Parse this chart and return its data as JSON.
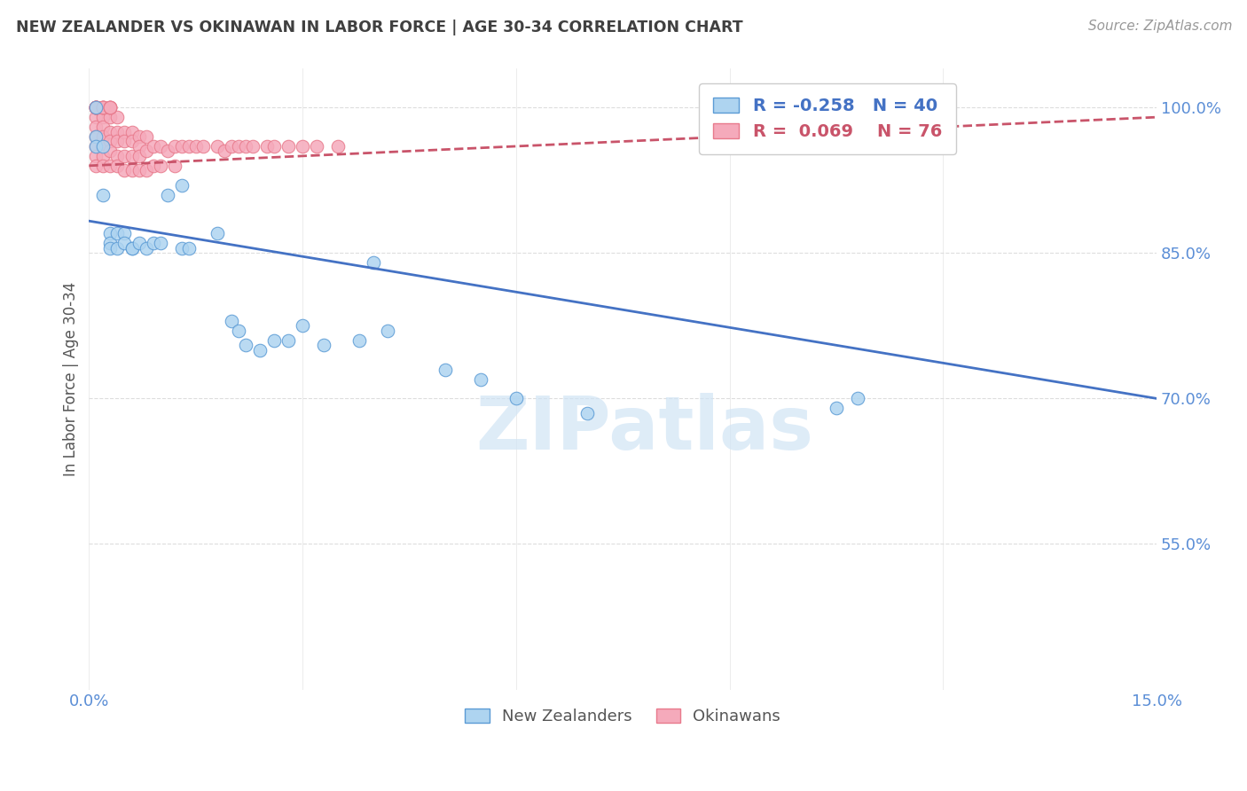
{
  "title": "NEW ZEALANDER VS OKINAWAN IN LABOR FORCE | AGE 30-34 CORRELATION CHART",
  "source": "Source: ZipAtlas.com",
  "ylabel": "In Labor Force | Age 30-34",
  "xlim": [
    0.0,
    0.15
  ],
  "ylim": [
    0.4,
    1.04
  ],
  "yticks": [
    0.55,
    0.7,
    0.85,
    1.0
  ],
  "ytick_labels": [
    "55.0%",
    "70.0%",
    "85.0%",
    "100.0%"
  ],
  "xticks": [
    0.0,
    0.03,
    0.06,
    0.09,
    0.12,
    0.15
  ],
  "xtick_labels": [
    "0.0%",
    "",
    "",
    "",
    "",
    "15.0%"
  ],
  "legend_R_nz": "-0.258",
  "legend_N_nz": "40",
  "legend_R_ok": "0.069",
  "legend_N_ok": "76",
  "nz_fill_color": "#AED4F0",
  "ok_fill_color": "#F5AABB",
  "nz_edge_color": "#5B9BD5",
  "ok_edge_color": "#E87A8C",
  "nz_line_color": "#4472C4",
  "ok_line_color": "#C9546A",
  "watermark_color": "#D0E4F5",
  "title_color": "#404040",
  "axis_label_color": "#5B8ED6",
  "grid_color": "#DDDDDD",
  "nz_scatter_x": [
    0.001,
    0.001,
    0.001,
    0.002,
    0.002,
    0.003,
    0.003,
    0.003,
    0.004,
    0.004,
    0.005,
    0.005,
    0.006,
    0.006,
    0.007,
    0.008,
    0.009,
    0.01,
    0.011,
    0.013,
    0.013,
    0.014,
    0.018,
    0.02,
    0.021,
    0.022,
    0.024,
    0.026,
    0.028,
    0.03,
    0.033,
    0.038,
    0.04,
    0.042,
    0.05,
    0.055,
    0.06,
    0.07,
    0.105,
    0.108
  ],
  "nz_scatter_y": [
    1.0,
    0.97,
    0.96,
    0.96,
    0.91,
    0.87,
    0.86,
    0.855,
    0.87,
    0.855,
    0.87,
    0.86,
    0.855,
    0.855,
    0.86,
    0.855,
    0.86,
    0.86,
    0.91,
    0.92,
    0.855,
    0.855,
    0.87,
    0.78,
    0.77,
    0.755,
    0.75,
    0.76,
    0.76,
    0.775,
    0.755,
    0.76,
    0.84,
    0.77,
    0.73,
    0.72,
    0.7,
    0.685,
    0.69,
    0.7
  ],
  "ok_scatter_x": [
    0.001,
    0.001,
    0.001,
    0.001,
    0.001,
    0.001,
    0.002,
    0.002,
    0.002,
    0.002,
    0.002,
    0.002,
    0.003,
    0.003,
    0.003,
    0.003,
    0.003,
    0.004,
    0.004,
    0.004,
    0.004,
    0.004,
    0.005,
    0.005,
    0.005,
    0.005,
    0.006,
    0.006,
    0.006,
    0.006,
    0.007,
    0.007,
    0.007,
    0.007,
    0.008,
    0.008,
    0.008,
    0.009,
    0.009,
    0.01,
    0.01,
    0.011,
    0.012,
    0.012,
    0.013,
    0.014,
    0.015,
    0.016,
    0.018,
    0.019,
    0.02,
    0.021,
    0.022,
    0.023,
    0.025,
    0.026,
    0.028,
    0.03,
    0.032,
    0.035,
    0.001,
    0.001,
    0.001,
    0.001,
    0.001,
    0.001,
    0.001,
    0.001,
    0.002,
    0.002,
    0.002,
    0.002,
    0.003,
    0.003,
    0.003,
    0.003
  ],
  "ok_scatter_y": [
    0.99,
    0.98,
    0.97,
    0.96,
    0.95,
    0.94,
    0.99,
    0.98,
    0.97,
    0.96,
    0.95,
    0.94,
    0.99,
    0.975,
    0.965,
    0.955,
    0.94,
    0.99,
    0.975,
    0.965,
    0.95,
    0.94,
    0.975,
    0.965,
    0.95,
    0.935,
    0.975,
    0.965,
    0.95,
    0.935,
    0.97,
    0.96,
    0.95,
    0.935,
    0.97,
    0.955,
    0.935,
    0.96,
    0.94,
    0.96,
    0.94,
    0.955,
    0.96,
    0.94,
    0.96,
    0.96,
    0.96,
    0.96,
    0.96,
    0.955,
    0.96,
    0.96,
    0.96,
    0.96,
    0.96,
    0.96,
    0.96,
    0.96,
    0.96,
    0.96,
    1.0,
    1.0,
    1.0,
    1.0,
    1.0,
    1.0,
    1.0,
    1.0,
    1.0,
    1.0,
    1.0,
    1.0,
    1.0,
    1.0,
    1.0,
    1.0
  ],
  "nz_trendline_x": [
    0.0,
    0.15
  ],
  "nz_trendline_y": [
    0.883,
    0.7
  ],
  "ok_trendline_x": [
    0.0,
    0.15
  ],
  "ok_trendline_y": [
    0.94,
    0.99
  ]
}
